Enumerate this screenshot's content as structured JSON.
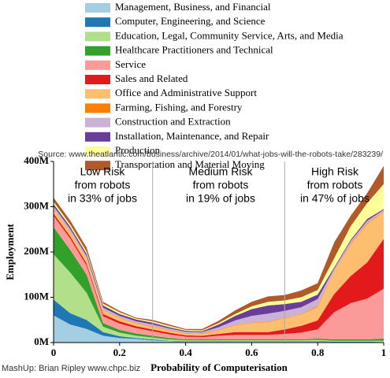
{
  "chart_data": {
    "type": "stacked_area",
    "x": [
      0,
      0.05,
      0.1,
      0.15,
      0.2,
      0.25,
      0.3,
      0.35,
      0.4,
      0.45,
      0.5,
      0.55,
      0.6,
      0.65,
      0.7,
      0.75,
      0.8,
      0.85,
      0.9,
      0.95,
      1
    ],
    "series": [
      {
        "name": "Management, Business, and Financial",
        "color": "#a6cee3",
        "values": [
          60,
          40,
          30,
          15,
          10,
          8,
          5,
          3,
          2,
          2,
          2,
          2,
          2,
          2,
          2,
          2,
          2,
          1,
          1,
          1,
          1
        ]
      },
      {
        "name": "Computer, Engineering, and Science",
        "color": "#1f78b4",
        "values": [
          35,
          25,
          20,
          8,
          4,
          2,
          2,
          1,
          1,
          1,
          1,
          1,
          1,
          1,
          1,
          1,
          1,
          1,
          1,
          1,
          0
        ]
      },
      {
        "name": "Education, Legal, Community Service, Arts, and Media",
        "color": "#b2df8a",
        "values": [
          100,
          90,
          60,
          12,
          8,
          5,
          4,
          3,
          2,
          2,
          2,
          2,
          2,
          2,
          2,
          2,
          3,
          2,
          2,
          2,
          3
        ]
      },
      {
        "name": "Healthcare Practitioners and Technical",
        "color": "#33a02c",
        "values": [
          60,
          50,
          40,
          8,
          6,
          5,
          4,
          3,
          2,
          2,
          2,
          2,
          2,
          2,
          2,
          2,
          3,
          3,
          3,
          3,
          5
        ]
      },
      {
        "name": "Service",
        "color": "#fb9a99",
        "values": [
          25,
          25,
          20,
          15,
          14,
          12,
          10,
          8,
          6,
          5,
          8,
          10,
          10,
          10,
          12,
          15,
          20,
          60,
          80,
          90,
          110
        ]
      },
      {
        "name": "Sales and Related",
        "color": "#e31a1c",
        "values": [
          5,
          5,
          5,
          5,
          5,
          4,
          4,
          4,
          3,
          3,
          4,
          6,
          6,
          6,
          10,
          15,
          20,
          40,
          60,
          80,
          110
        ]
      },
      {
        "name": "Office and Administrative Support",
        "color": "#fdbf6f",
        "values": [
          10,
          10,
          10,
          8,
          7,
          6,
          6,
          5,
          4,
          4,
          8,
          15,
          20,
          22,
          25,
          25,
          30,
          50,
          70,
          85,
          60
        ]
      },
      {
        "name": "Farming, Fishing, and Forestry",
        "color": "#ff7f00",
        "values": [
          1,
          1,
          1,
          1,
          1,
          1,
          1,
          1,
          1,
          1,
          1,
          1,
          1,
          1,
          1,
          1,
          2,
          1,
          2,
          2,
          1
        ]
      },
      {
        "name": "Construction and Extraction",
        "color": "#cab2d6",
        "values": [
          5,
          5,
          5,
          5,
          4,
          4,
          4,
          3,
          3,
          3,
          6,
          10,
          15,
          18,
          15,
          15,
          15,
          5,
          5,
          5,
          3
        ]
      },
      {
        "name": "Installation, Maintenance, and Repair",
        "color": "#6a3d9a",
        "values": [
          5,
          5,
          5,
          5,
          4,
          4,
          4,
          3,
          2,
          2,
          6,
          10,
          15,
          18,
          15,
          12,
          10,
          3,
          3,
          4,
          2
        ]
      },
      {
        "name": "Production",
        "color": "#ffff99",
        "values": [
          5,
          5,
          5,
          4,
          4,
          2,
          3,
          3,
          2,
          2,
          3,
          4,
          6,
          8,
          8,
          10,
          10,
          20,
          30,
          35,
          55
        ]
      },
      {
        "name": "Transportation and Material Moving",
        "color": "#b15928",
        "values": [
          9,
          9,
          9,
          4,
          3,
          2,
          3,
          3,
          2,
          3,
          5,
          8,
          10,
          12,
          12,
          15,
          15,
          35,
          23,
          22,
          40
        ]
      }
    ],
    "source": "Source: www.theatlantic.com/business/archive/2014/01/what-jobs-will-the-robots-take/283239/",
    "ylabel": "Employment",
    "xlabel": "Probability of Computerisation",
    "credit": "MashUp: Brian Ripley www.chpc.biz",
    "annotations": [
      [
        "Low Risk",
        "from robots",
        "in 33% of jobs"
      ],
      [
        "Medium Risk",
        "from robots",
        "in 19% of jobs"
      ],
      [
        "High Risk",
        "from robots",
        "in 47% of jobs"
      ]
    ],
    "dividers": [
      0.3,
      0.7
    ],
    "xlim": [
      0,
      1
    ],
    "xticks": [
      0,
      0.2,
      0.4,
      0.6,
      0.8,
      1
    ],
    "ylim": [
      0,
      400
    ],
    "yticks": [
      {
        "value": 0,
        "label": "0M"
      },
      {
        "value": 100,
        "label": "100M"
      },
      {
        "value": 200,
        "label": "200M"
      },
      {
        "value": 300,
        "label": "300M"
      },
      {
        "value": 400,
        "label": "400M"
      }
    ]
  }
}
